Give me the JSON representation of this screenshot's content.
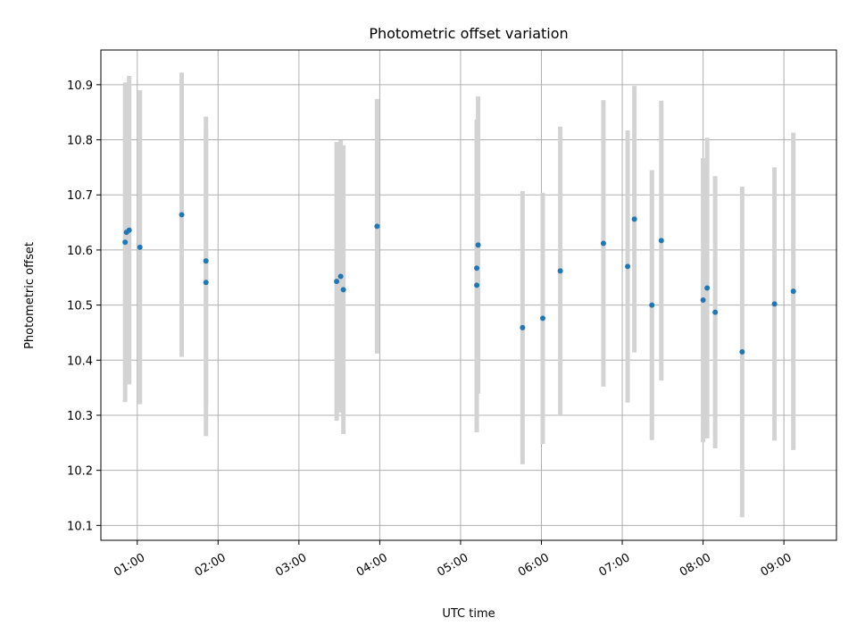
{
  "chart_data": {
    "type": "scatter",
    "title": "Photometric offset variation",
    "xlabel": "UTC time",
    "ylabel": "Photometric offset",
    "x_tick_labels": [
      "01:00",
      "02:00",
      "03:00",
      "04:00",
      "05:00",
      "06:00",
      "07:00",
      "08:00",
      "09:00"
    ],
    "x_tick_values": [
      "01:00",
      "02:00",
      "03:00",
      "04:00",
      "05:00",
      "06:00",
      "07:00",
      "08:00",
      "09:00"
    ],
    "xlim": [
      "00:33",
      "09:39"
    ],
    "y_tick_values": [
      10.1,
      10.2,
      10.3,
      10.4,
      10.5,
      10.6,
      10.7,
      10.8,
      10.9
    ],
    "y_tick_labels": [
      "10.1",
      "10.2",
      "10.3",
      "10.4",
      "10.5",
      "10.6",
      "10.7",
      "10.8",
      "10.9"
    ],
    "ylim": [
      10.073,
      10.963
    ],
    "grid": true,
    "point_color": "#1f77b4",
    "errorbar_color": "#d3d3d3",
    "points": [
      {
        "x": "00:51",
        "y": 10.614,
        "err": 0.29
      },
      {
        "x": "00:52",
        "y": 10.632,
        "err": 0.27
      },
      {
        "x": "00:54",
        "y": 10.636,
        "err": 0.28
      },
      {
        "x": "01:02",
        "y": 10.605,
        "err": 0.285
      },
      {
        "x": "01:33",
        "y": 10.664,
        "err": 0.258
      },
      {
        "x": "01:51",
        "y": 10.58,
        "err": 0.262
      },
      {
        "x": "01:51",
        "y": 10.541,
        "err": 0.279
      },
      {
        "x": "03:28",
        "y": 10.543,
        "err": 0.253
      },
      {
        "x": "03:31",
        "y": 10.552,
        "err": 0.247
      },
      {
        "x": "03:33",
        "y": 10.528,
        "err": 0.262
      },
      {
        "x": "03:58",
        "y": 10.643,
        "err": 0.231
      },
      {
        "x": "05:12",
        "y": 10.536,
        "err": 0.267
      },
      {
        "x": "05:12",
        "y": 10.567,
        "err": 0.27
      },
      {
        "x": "05:13",
        "y": 10.609,
        "err": 0.27
      },
      {
        "x": "05:46",
        "y": 10.459,
        "err": 0.248
      },
      {
        "x": "06:01",
        "y": 10.476,
        "err": 0.228
      },
      {
        "x": "06:14",
        "y": 10.562,
        "err": 0.262
      },
      {
        "x": "06:46",
        "y": 10.612,
        "err": 0.26
      },
      {
        "x": "07:04",
        "y": 10.57,
        "err": 0.247
      },
      {
        "x": "07:09",
        "y": 10.656,
        "err": 0.242
      },
      {
        "x": "07:22",
        "y": 10.5,
        "err": 0.245
      },
      {
        "x": "07:29",
        "y": 10.617,
        "err": 0.254
      },
      {
        "x": "08:00",
        "y": 10.509,
        "err": 0.258
      },
      {
        "x": "08:03",
        "y": 10.531,
        "err": 0.273
      },
      {
        "x": "08:09",
        "y": 10.487,
        "err": 0.247
      },
      {
        "x": "08:29",
        "y": 10.415,
        "err": 0.3
      },
      {
        "x": "08:53",
        "y": 10.502,
        "err": 0.248
      },
      {
        "x": "09:07",
        "y": 10.525,
        "err": 0.288
      }
    ]
  }
}
